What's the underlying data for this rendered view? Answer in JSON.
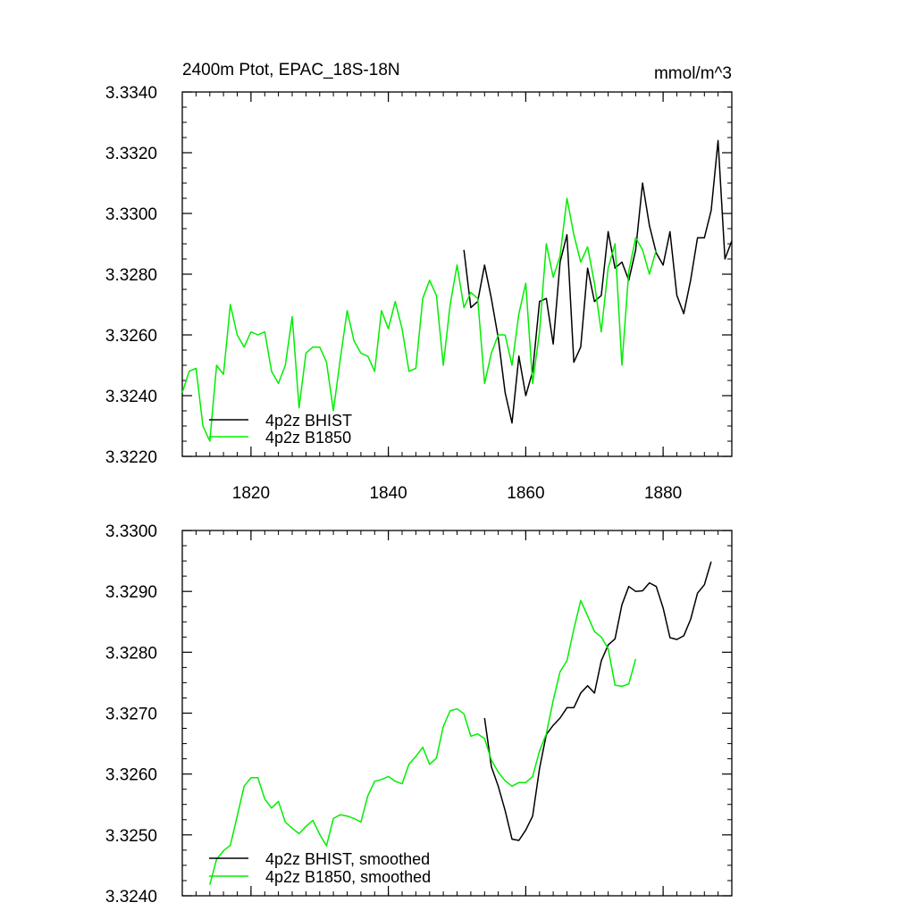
{
  "chart_data": [
    {
      "type": "line",
      "title_left": "2400m Ptot, EPAC_18S-18N",
      "title_right": "mmol/m^3",
      "xlim": [
        1810,
        1890
      ],
      "ylim": [
        3.322,
        3.334
      ],
      "x_ticks": [
        1820,
        1840,
        1860,
        1880
      ],
      "x_tick_labels": [
        "1820",
        "1840",
        "1860",
        "1880"
      ],
      "y_ticks": [
        3.322,
        3.324,
        3.326,
        3.328,
        3.33,
        3.332,
        3.334
      ],
      "y_tick_labels": [
        "3.3220",
        "3.3240",
        "3.3260",
        "3.3280",
        "3.3300",
        "3.3320",
        "3.3340"
      ],
      "legend": [
        "4p2z BHIST",
        "4p2z B1850"
      ],
      "legend_position": "bottom-left",
      "series": [
        {
          "name": "4p2z BHIST",
          "color": "#000000",
          "x": [
            1851,
            1852,
            1853,
            1854,
            1855,
            1856,
            1857,
            1858,
            1859,
            1860,
            1861,
            1862,
            1863,
            1864,
            1865,
            1866,
            1867,
            1868,
            1869,
            1870,
            1871,
            1872,
            1873,
            1874,
            1875,
            1876,
            1877,
            1878,
            1879,
            1880,
            1881,
            1882,
            1883,
            1884,
            1885,
            1886,
            1887,
            1888,
            1889,
            1890
          ],
          "values": [
            3.3288,
            3.3269,
            3.3271,
            3.3283,
            3.3272,
            3.3259,
            3.3241,
            3.3231,
            3.3253,
            3.324,
            3.3248,
            3.3271,
            3.3272,
            3.3257,
            3.3284,
            3.3293,
            3.3251,
            3.3256,
            3.3282,
            3.3271,
            3.3273,
            3.3294,
            3.3282,
            3.3284,
            3.3278,
            3.3288,
            3.331,
            3.3296,
            3.3287,
            3.3283,
            3.3294,
            3.3273,
            3.3267,
            3.3278,
            3.3292,
            3.3292,
            3.3301,
            3.3324,
            3.3285,
            3.3291
          ]
        },
        {
          "name": "4p2z B1850",
          "color": "#00ee00",
          "x": [
            1810,
            1811,
            1812,
            1813,
            1814,
            1815,
            1816,
            1817,
            1818,
            1819,
            1820,
            1821,
            1822,
            1823,
            1824,
            1825,
            1826,
            1827,
            1828,
            1829,
            1830,
            1831,
            1832,
            1833,
            1834,
            1835,
            1836,
            1837,
            1838,
            1839,
            1840,
            1841,
            1842,
            1843,
            1844,
            1845,
            1846,
            1847,
            1848,
            1849,
            1850,
            1851,
            1852,
            1853,
            1854,
            1855,
            1856,
            1857,
            1858,
            1859,
            1860,
            1861,
            1862,
            1863,
            1864,
            1865,
            1866,
            1867,
            1868,
            1869,
            1870,
            1871,
            1872,
            1873,
            1874,
            1875,
            1876,
            1877,
            1878,
            1879
          ],
          "values": [
            3.3241,
            3.3248,
            3.3249,
            3.323,
            3.3225,
            3.325,
            3.3247,
            3.327,
            3.326,
            3.3256,
            3.3261,
            3.326,
            3.3261,
            3.3248,
            3.3244,
            3.325,
            3.3266,
            3.3236,
            3.3254,
            3.3256,
            3.3256,
            3.3251,
            3.3235,
            3.3252,
            3.3268,
            3.3258,
            3.3254,
            3.3253,
            3.3248,
            3.3268,
            3.3262,
            3.3271,
            3.3262,
            3.3248,
            3.3249,
            3.3272,
            3.3278,
            3.3273,
            3.325,
            3.327,
            3.3283,
            3.3269,
            3.3274,
            3.3272,
            3.3244,
            3.3254,
            3.326,
            3.326,
            3.325,
            3.3267,
            3.3277,
            3.3244,
            3.3261,
            3.329,
            3.3279,
            3.3286,
            3.3305,
            3.3293,
            3.3284,
            3.3289,
            3.3277,
            3.3261,
            3.3282,
            3.329,
            3.325,
            3.3281,
            3.3292,
            3.3288,
            3.328,
            3.3288
          ]
        }
      ]
    },
    {
      "type": "line",
      "xlim": [
        1810,
        1890
      ],
      "ylim": [
        3.324,
        3.33
      ],
      "x_ticks": [
        1820,
        1840,
        1860,
        1880
      ],
      "y_ticks": [
        3.324,
        3.325,
        3.326,
        3.327,
        3.328,
        3.329,
        3.33
      ],
      "y_tick_labels": [
        "3.3240",
        "3.3250",
        "3.3260",
        "3.3270",
        "3.3280",
        "3.3290",
        "3.3300"
      ],
      "legend": [
        "4p2z BHIST, smoothed",
        "4p2z B1850, smoothed"
      ],
      "legend_position": "bottom-left",
      "series": [
        {
          "name": "4p2z BHIST, smoothed",
          "color": "#000000",
          "x": [
            1854,
            1855,
            1856,
            1857,
            1858,
            1859,
            1860,
            1861,
            1862,
            1863,
            1864,
            1865,
            1866,
            1867,
            1868,
            1869,
            1870,
            1871,
            1872,
            1873,
            1874,
            1875,
            1876,
            1877,
            1878,
            1879,
            1880,
            1881,
            1882,
            1883,
            1884,
            1885,
            1886,
            1887
          ],
          "values": [
            3.32692,
            3.32612,
            3.3258,
            3.3254,
            3.32493,
            3.32491,
            3.32508,
            3.32531,
            3.32609,
            3.32665,
            3.3268,
            3.32692,
            3.32709,
            3.32709,
            3.32733,
            3.32745,
            3.32733,
            3.32786,
            3.32812,
            3.32822,
            3.32878,
            3.32908,
            3.329,
            3.32901,
            3.32914,
            3.32908,
            3.32873,
            3.32824,
            3.32821,
            3.32827,
            3.32854,
            3.32897,
            3.32911,
            3.32949
          ]
        },
        {
          "name": "4p2z B1850, smoothed",
          "color": "#00ee00",
          "x": [
            1814,
            1815,
            1816,
            1817,
            1818,
            1819,
            1820,
            1821,
            1822,
            1823,
            1824,
            1825,
            1826,
            1827,
            1828,
            1829,
            1830,
            1831,
            1832,
            1833,
            1834,
            1835,
            1836,
            1837,
            1838,
            1839,
            1840,
            1841,
            1842,
            1843,
            1844,
            1845,
            1846,
            1847,
            1848,
            1849,
            1850,
            1851,
            1852,
            1853,
            1854,
            1855,
            1856,
            1857,
            1858,
            1859,
            1860,
            1861,
            1862,
            1863,
            1864,
            1865,
            1866,
            1867,
            1868,
            1869,
            1870,
            1871,
            1872,
            1873,
            1874,
            1875,
            1876
          ],
          "values": [
            3.32418,
            3.3246,
            3.32474,
            3.32483,
            3.32531,
            3.3258,
            3.32594,
            3.32594,
            3.32559,
            3.32544,
            3.32555,
            3.32521,
            3.32511,
            3.32502,
            3.32514,
            3.32524,
            3.32501,
            3.32482,
            3.32527,
            3.32533,
            3.32531,
            3.32527,
            3.32521,
            3.32564,
            3.32588,
            3.32591,
            3.32596,
            3.32588,
            3.32584,
            3.32616,
            3.32629,
            3.32644,
            3.32616,
            3.32626,
            3.32678,
            3.32704,
            3.32707,
            3.32699,
            3.32662,
            3.32666,
            3.32658,
            3.32623,
            3.32603,
            3.32589,
            3.3258,
            3.32586,
            3.32586,
            3.32596,
            3.32638,
            3.32666,
            3.32721,
            3.32768,
            3.32786,
            3.32838,
            3.32885,
            3.3286,
            3.32834,
            3.32825,
            3.32806,
            3.32746,
            3.32744,
            3.32748,
            3.32789
          ]
        }
      ]
    }
  ]
}
